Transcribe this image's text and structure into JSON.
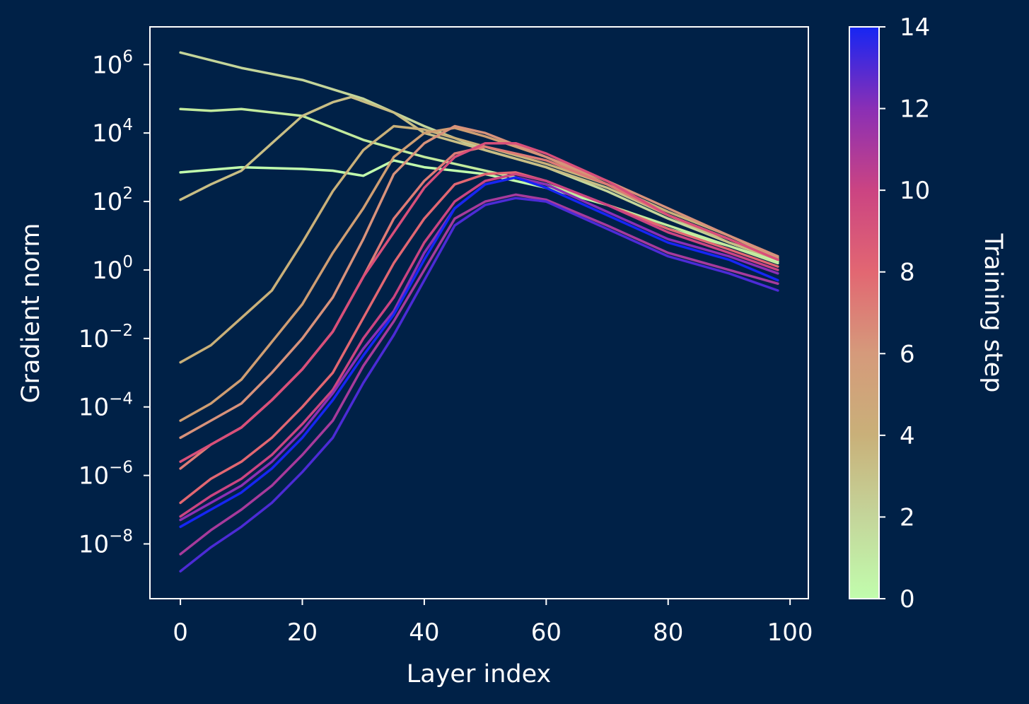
{
  "chart_data": {
    "type": "line",
    "xlabel": "Layer index",
    "ylabel": "Gradient norm",
    "xlim": [
      -5,
      103
    ],
    "ylim_log10": [
      -9.6,
      7.1
    ],
    "y_scale": "log",
    "x_ticks": [
      0,
      20,
      40,
      60,
      80,
      100
    ],
    "y_ticks": [
      {
        "base": "10",
        "exp": "6",
        "value": 6
      },
      {
        "base": "10",
        "exp": "4",
        "value": 4
      },
      {
        "base": "10",
        "exp": "2",
        "value": 2
      },
      {
        "base": "10",
        "exp": "0",
        "value": 0
      },
      {
        "base": "10",
        "exp": "−2",
        "value": -2
      },
      {
        "base": "10",
        "exp": "−4",
        "value": -4
      },
      {
        "base": "10",
        "exp": "−6",
        "value": -6
      },
      {
        "base": "10",
        "exp": "−8",
        "value": -8
      }
    ],
    "colorbar": {
      "label": "Training step",
      "range": [
        0,
        14
      ],
      "ticks": [
        "0",
        "2",
        "4",
        "6",
        "8",
        "10",
        "12",
        "14"
      ],
      "colors": [
        "#c1fdad",
        "#c4d59a",
        "#c9b079",
        "#d59a7b",
        "#e26772",
        "#cb4482",
        "#8a2fb5",
        "#1626f3"
      ]
    },
    "series": [
      {
        "step": 0,
        "color": "#c1fdad",
        "x": [
          0,
          10,
          20,
          25,
          30,
          35,
          40,
          50,
          60,
          70,
          80,
          90,
          98
        ],
        "log10y": [
          2.85,
          3.0,
          2.95,
          2.9,
          2.75,
          3.2,
          3.0,
          2.8,
          2.4,
          1.9,
          1.2,
          0.7,
          0.25
        ]
      },
      {
        "step": 1,
        "color": "#c2ea9d",
        "x": [
          0,
          5,
          10,
          20,
          30,
          40,
          50,
          60,
          70,
          80,
          90,
          98
        ],
        "log10y": [
          4.7,
          4.65,
          4.7,
          4.5,
          3.8,
          3.3,
          2.9,
          2.5,
          1.9,
          1.3,
          0.7,
          0.2
        ]
      },
      {
        "step": 2,
        "color": "#c4d59a",
        "x": [
          0,
          10,
          20,
          30,
          40,
          50,
          60,
          70,
          80,
          90,
          98
        ],
        "log10y": [
          6.35,
          5.9,
          5.55,
          5.0,
          4.2,
          3.5,
          3.0,
          2.3,
          1.5,
          0.8,
          0.3
        ]
      },
      {
        "step": 3,
        "color": "#c8be85",
        "x": [
          0,
          5,
          10,
          15,
          20,
          25,
          28,
          35,
          40,
          50,
          60,
          70,
          80,
          90,
          98
        ],
        "log10y": [
          2.05,
          2.5,
          2.9,
          3.7,
          4.5,
          4.9,
          5.05,
          4.6,
          4.0,
          3.5,
          3.0,
          2.4,
          1.6,
          0.8,
          0.3
        ]
      },
      {
        "step": 4,
        "color": "#c9b079",
        "x": [
          0,
          5,
          10,
          15,
          20,
          25,
          30,
          35,
          40,
          50,
          60,
          70,
          80,
          90,
          98
        ],
        "log10y": [
          -2.7,
          -2.2,
          -1.4,
          -0.6,
          0.8,
          2.3,
          3.5,
          4.2,
          4.1,
          3.6,
          3.1,
          2.5,
          1.7,
          1.0,
          0.35
        ]
      },
      {
        "step": 5,
        "color": "#cf9e72",
        "x": [
          0,
          5,
          10,
          15,
          20,
          25,
          30,
          35,
          40,
          45,
          50,
          60,
          70,
          80,
          90,
          98
        ],
        "log10y": [
          -4.4,
          -3.9,
          -3.2,
          -2.1,
          -1.0,
          0.5,
          1.8,
          3.3,
          4.0,
          4.15,
          3.9,
          3.3,
          2.5,
          1.6,
          0.9,
          0.3
        ]
      },
      {
        "step": 6,
        "color": "#d8927b",
        "x": [
          0,
          5,
          10,
          15,
          20,
          25,
          30,
          35,
          40,
          45,
          50,
          60,
          70,
          80,
          90,
          98
        ],
        "log10y": [
          -4.9,
          -4.4,
          -3.9,
          -3.0,
          -2.0,
          -0.8,
          0.9,
          2.8,
          3.7,
          4.2,
          4.0,
          3.3,
          2.6,
          1.8,
          1.0,
          0.4
        ]
      },
      {
        "step": 7,
        "color": "#de7b76",
        "x": [
          0,
          5,
          10,
          15,
          20,
          25,
          30,
          35,
          40,
          45,
          50,
          60,
          70,
          80,
          90,
          98
        ],
        "log10y": [
          -5.8,
          -5.1,
          -4.6,
          -3.8,
          -2.9,
          -1.8,
          -0.2,
          1.5,
          2.6,
          3.4,
          3.6,
          3.2,
          2.5,
          1.6,
          0.9,
          0.3
        ]
      },
      {
        "step": 8,
        "color": "#e26772",
        "x": [
          0,
          5,
          10,
          15,
          20,
          25,
          30,
          35,
          40,
          45,
          50,
          55,
          60,
          70,
          80,
          90,
          98
        ],
        "log10y": [
          -6.8,
          -6.1,
          -5.6,
          -4.9,
          -4.0,
          -3.0,
          -1.4,
          0.2,
          1.5,
          2.5,
          2.8,
          2.85,
          2.6,
          1.9,
          1.2,
          0.6,
          0.1
        ]
      },
      {
        "step": 9,
        "color": "#d94f7a",
        "x": [
          0,
          5,
          10,
          15,
          20,
          25,
          30,
          35,
          40,
          45,
          50,
          55,
          60,
          70,
          80,
          90,
          98
        ],
        "log10y": [
          -5.6,
          -5.1,
          -4.6,
          -3.8,
          -2.9,
          -1.8,
          -0.2,
          1.1,
          2.4,
          3.3,
          3.7,
          3.7,
          3.4,
          2.6,
          1.6,
          0.9,
          0.3
        ]
      },
      {
        "step": 10,
        "color": "#cb4482",
        "x": [
          0,
          5,
          10,
          15,
          20,
          25,
          30,
          35,
          40,
          45,
          50,
          55,
          60,
          70,
          80,
          90,
          98
        ],
        "log10y": [
          -7.2,
          -6.6,
          -6.1,
          -5.4,
          -4.5,
          -3.5,
          -2.0,
          -0.8,
          0.8,
          2.0,
          2.6,
          2.8,
          2.6,
          1.9,
          1.1,
          0.5,
          0.0
        ]
      },
      {
        "step": 11,
        "color": "#a73a9c",
        "x": [
          0,
          5,
          10,
          15,
          20,
          25,
          30,
          35,
          40,
          45,
          50,
          55,
          60,
          70,
          80,
          90,
          98
        ],
        "log10y": [
          -8.3,
          -7.6,
          -7.0,
          -6.3,
          -5.4,
          -4.4,
          -2.8,
          -1.5,
          0.0,
          1.5,
          2.0,
          2.2,
          2.05,
          1.3,
          0.5,
          0.0,
          -0.4
        ]
      },
      {
        "step": 12,
        "color": "#8a2fb5",
        "x": [
          0,
          5,
          10,
          15,
          20,
          25,
          30,
          35,
          40,
          45,
          50,
          55,
          60,
          70,
          80,
          90,
          98
        ],
        "log10y": [
          -7.3,
          -6.8,
          -6.3,
          -5.6,
          -4.7,
          -3.6,
          -2.3,
          -1.2,
          0.5,
          1.8,
          2.5,
          2.7,
          2.5,
          1.7,
          0.9,
          0.4,
          -0.1
        ]
      },
      {
        "step": 13,
        "color": "#4c2bd6",
        "x": [
          0,
          5,
          10,
          15,
          20,
          25,
          30,
          35,
          40,
          45,
          50,
          55,
          60,
          70,
          80,
          90,
          98
        ],
        "log10y": [
          -8.8,
          -8.1,
          -7.5,
          -6.8,
          -5.9,
          -4.9,
          -3.3,
          -1.9,
          -0.3,
          1.3,
          1.9,
          2.1,
          2.0,
          1.2,
          0.4,
          -0.1,
          -0.6
        ]
      },
      {
        "step": 14,
        "color": "#1626f3",
        "x": [
          0,
          5,
          10,
          15,
          20,
          25,
          30,
          35,
          40,
          45,
          50,
          55,
          60,
          70,
          80,
          90,
          98
        ],
        "log10y": [
          -7.5,
          -7.0,
          -6.5,
          -5.8,
          -4.9,
          -3.8,
          -2.5,
          -1.3,
          0.3,
          1.8,
          2.5,
          2.7,
          2.4,
          1.6,
          0.8,
          0.3,
          -0.3
        ]
      }
    ]
  }
}
